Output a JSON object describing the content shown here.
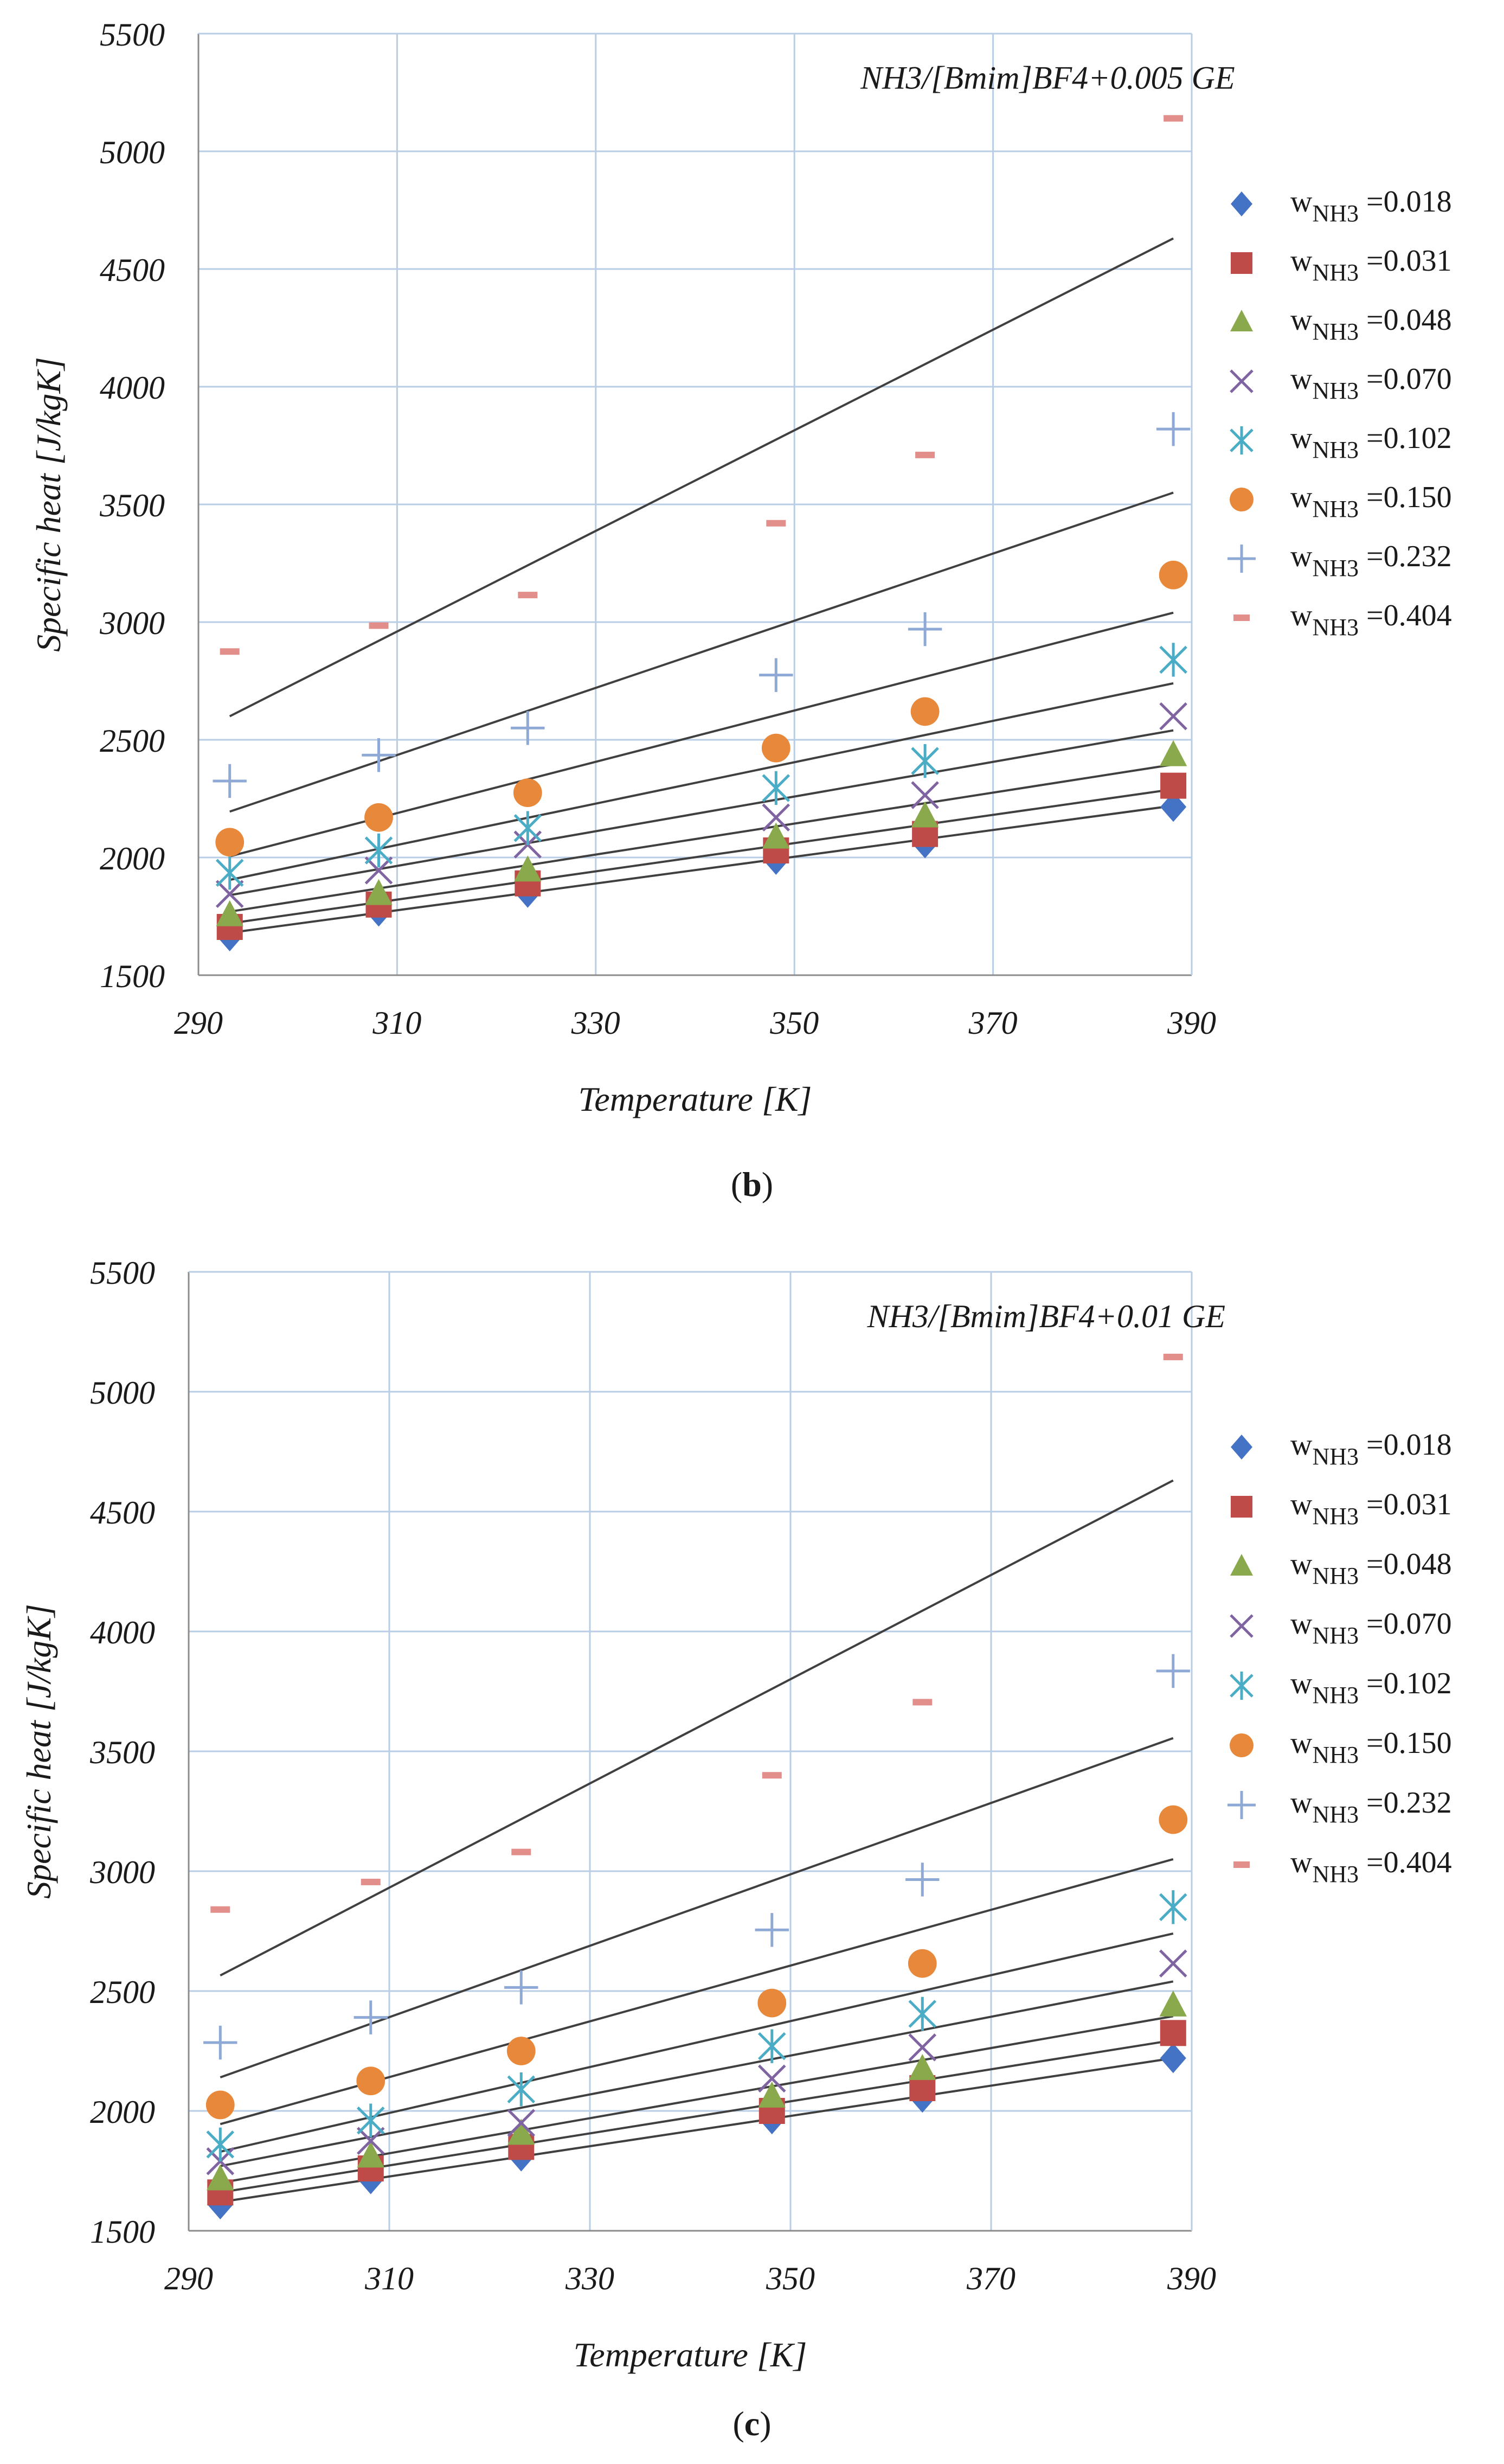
{
  "page": {
    "background": "#ffffff"
  },
  "chart_data": [
    {
      "type": "scatter",
      "panel": "b",
      "caption": {
        "open": "(",
        "letter": "b",
        "close": ")"
      },
      "annotation": "NH3/[Bmim]BF4+0.005 GE",
      "xlabel": "Temperature [K]",
      "ylabel": "Specific heat [J/kgK]",
      "xlim": [
        290,
        390
      ],
      "ylim": [
        1500,
        5500
      ],
      "xticks": [
        "290",
        "310",
        "330",
        "350",
        "370",
        "390"
      ],
      "yticks": [
        "1500",
        "2000",
        "2500",
        "3000",
        "3500",
        "4000",
        "4500",
        "5000",
        "5500"
      ],
      "grid": true,
      "legend_position": "right",
      "x": [
        293.15,
        308.15,
        323.15,
        348.15,
        363.15,
        388.15
      ],
      "series": [
        {
          "w": "0.018",
          "marker": "diamond",
          "color": "#4472C4",
          "values": [
            1665,
            1770,
            1850,
            1990,
            2060,
            2215
          ],
          "fit": [
            1680,
            2220
          ]
        },
        {
          "w": "0.031",
          "marker": "square",
          "color": "#BE4B48",
          "values": [
            1705,
            1800,
            1890,
            2030,
            2100,
            2305
          ],
          "fit": [
            1720,
            2290
          ]
        },
        {
          "w": "0.048",
          "marker": "triangle",
          "color": "#8AA84C",
          "values": [
            1755,
            1845,
            1945,
            2085,
            2175,
            2435
          ],
          "fit": [
            1770,
            2395
          ]
        },
        {
          "w": "0.070",
          "marker": "x",
          "color": "#8064A2",
          "values": [
            1845,
            1945,
            2055,
            2170,
            2265,
            2600
          ],
          "fit": [
            1840,
            2540
          ]
        },
        {
          "w": "0.102",
          "marker": "asterisk",
          "color": "#4BACC6",
          "values": [
            1935,
            2030,
            2125,
            2295,
            2410,
            2840
          ],
          "fit": [
            1905,
            2740
          ]
        },
        {
          "w": "0.150",
          "marker": "circle",
          "color": "#E8883A",
          "values": [
            2065,
            2170,
            2275,
            2465,
            2620,
            3200
          ],
          "fit": [
            2005,
            3040
          ]
        },
        {
          "w": "0.232",
          "marker": "plus",
          "color": "#8FA9D6",
          "values": [
            2325,
            2435,
            2550,
            2775,
            2970,
            3820
          ],
          "fit": [
            2195,
            3550
          ]
        },
        {
          "w": "0.404",
          "marker": "dash",
          "color": "#E28F8C",
          "values": [
            2875,
            2985,
            3115,
            3420,
            3710,
            5140
          ],
          "fit": [
            2600,
            4630
          ]
        }
      ],
      "legend_prefix": "w",
      "legend_sub": "NH3",
      "legend_eq": " =",
      "legend_labels": [
        "0.018",
        "0.031",
        "0.048",
        "0.070",
        "0.102",
        "0.150",
        "0.232",
        "0.404"
      ]
    },
    {
      "type": "scatter",
      "panel": "c",
      "caption": {
        "open": "(",
        "letter": "c",
        "close": ")"
      },
      "annotation": "NH3/[Bmim]BF4+0.01 GE",
      "xlabel": "Temperature [K]",
      "ylabel": "Specific heat [J/kgK]",
      "xlim": [
        290,
        390
      ],
      "ylim": [
        1500,
        5500
      ],
      "xticks": [
        "290",
        "310",
        "330",
        "350",
        "370",
        "390"
      ],
      "yticks": [
        "1500",
        "2000",
        "2500",
        "3000",
        "3500",
        "4000",
        "4500",
        "5000",
        "5500"
      ],
      "grid": true,
      "legend_position": "right",
      "x": [
        293.15,
        308.15,
        323.15,
        348.15,
        363.15,
        388.15
      ],
      "series": [
        {
          "w": "0.018",
          "marker": "diamond",
          "color": "#4472C4",
          "values": [
            1610,
            1715,
            1810,
            1965,
            2055,
            2220
          ],
          "fit": [
            1620,
            2220
          ]
        },
        {
          "w": "0.031",
          "marker": "square",
          "color": "#BE4B48",
          "values": [
            1660,
            1760,
            1850,
            2000,
            2095,
            2325
          ],
          "fit": [
            1660,
            2295
          ]
        },
        {
          "w": "0.048",
          "marker": "triangle",
          "color": "#8AA84C",
          "values": [
            1715,
            1810,
            1905,
            2060,
            2175,
            2440
          ],
          "fit": [
            1700,
            2395
          ]
        },
        {
          "w": "0.070",
          "marker": "x",
          "color": "#8064A2",
          "values": [
            1790,
            1875,
            1950,
            2135,
            2265,
            2615
          ],
          "fit": [
            1770,
            2540
          ]
        },
        {
          "w": "0.102",
          "marker": "asterisk",
          "color": "#4BACC6",
          "values": [
            1860,
            1960,
            2090,
            2270,
            2405,
            2850
          ],
          "fit": [
            1830,
            2740
          ]
        },
        {
          "w": "0.150",
          "marker": "circle",
          "color": "#E8883A",
          "values": [
            2025,
            2125,
            2250,
            2450,
            2615,
            3215
          ],
          "fit": [
            1945,
            3050
          ]
        },
        {
          "w": "0.232",
          "marker": "plus",
          "color": "#8FA9D6",
          "values": [
            2285,
            2390,
            2515,
            2755,
            2965,
            3835
          ],
          "fit": [
            2140,
            3555
          ]
        },
        {
          "w": "0.404",
          "marker": "dash",
          "color": "#E28F8C",
          "values": [
            2840,
            2955,
            3080,
            3400,
            3705,
            5145
          ],
          "fit": [
            2565,
            4630
          ]
        }
      ],
      "legend_prefix": "w",
      "legend_sub": "NH3",
      "legend_eq": " =",
      "legend_labels": [
        "0.018",
        "0.031",
        "0.048",
        "0.070",
        "0.102",
        "0.150",
        "0.232",
        "0.404"
      ]
    }
  ]
}
